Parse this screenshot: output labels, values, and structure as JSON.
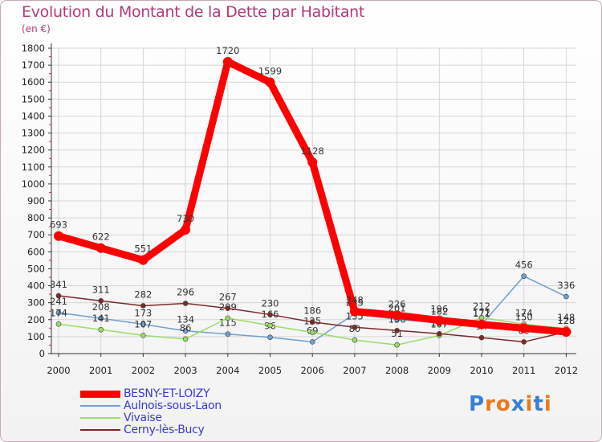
{
  "chart_data": {
    "type": "line",
    "title": "Evolution du Montant de la Dette par Habitant",
    "subtitle": "(en €)",
    "xlabel": "",
    "ylabel": "",
    "ylim": [
      0,
      1800
    ],
    "yticks": [
      0,
      100,
      200,
      300,
      400,
      500,
      600,
      700,
      800,
      900,
      1000,
      1100,
      1200,
      1300,
      1400,
      1500,
      1600,
      1700,
      1800
    ],
    "categories": [
      "2000",
      "2001",
      "2002",
      "2003",
      "2004",
      "2005",
      "2006",
      "2007",
      "2008",
      "2009",
      "2010",
      "2011",
      "2012"
    ],
    "series": [
      {
        "name": "BESNY-ET-LOIZY",
        "color": "#ff0000",
        "emphasis": true,
        "values": [
          693,
          622,
          551,
          730,
          1720,
          1599,
          1128,
          248,
          226,
          196,
          172,
          150,
          128
        ]
      },
      {
        "name": "Aulnois-sous-Laon",
        "color": "#6fa0d0",
        "emphasis": false,
        "values": [
          241,
          208,
          173,
          134,
          115,
          96,
          69,
          235,
          201,
          182,
          171,
          456,
          336
        ]
      },
      {
        "name": "Vivaise",
        "color": "#99dd66",
        "emphasis": false,
        "values": [
          174,
          141,
          107,
          86,
          209,
          166,
          125,
          80,
          51,
          107,
          212,
          174,
          148
        ]
      },
      {
        "name": "Cerny-lès-Bucy",
        "color": "#7a2a2a",
        "emphasis": false,
        "values": [
          341,
          311,
          282,
          296,
          267,
          230,
          186,
          155,
          136,
          117,
          94,
          69,
          128
        ]
      }
    ],
    "grid": true,
    "legend_position": "bottom-left"
  },
  "logo": {
    "text": "Proxiti",
    "colors": [
      "#3a7fd0",
      "#e87a1e",
      "#e87a1e",
      "#3a7fd0",
      "#e87a1e",
      "#3a7fd0",
      "#e87a1e"
    ]
  }
}
